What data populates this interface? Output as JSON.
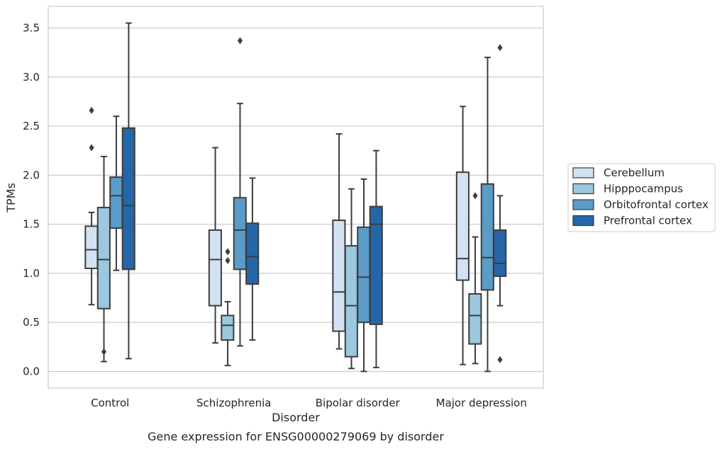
{
  "chart_data": {
    "type": "box",
    "title": "Gene expression for ENSG00000279069 by disorder",
    "xlabel": "Disorder",
    "ylabel": "TPMs",
    "ylim": [
      -0.17,
      3.72
    ],
    "yticks": [
      "0.0",
      "0.5",
      "1.0",
      "1.5",
      "2.0",
      "2.5",
      "3.0",
      "3.5"
    ],
    "categories": [
      "Control",
      "Schizophrenia",
      "Bipolar disorder",
      "Major depression"
    ],
    "grid": "horizontal",
    "legend_position": "right",
    "series": [
      {
        "name": "Cerebellum",
        "color": "#d2e2f2",
        "boxes": [
          {
            "whisker_low": 0.68,
            "q1": 1.05,
            "median": 1.24,
            "q3": 1.48,
            "whisker_high": 1.62,
            "outliers": [
              2.66,
              2.28
            ]
          },
          {
            "whisker_low": 0.29,
            "q1": 0.67,
            "median": 1.14,
            "q3": 1.44,
            "whisker_high": 2.28,
            "outliers": []
          },
          {
            "whisker_low": 0.23,
            "q1": 0.41,
            "median": 0.81,
            "q3": 1.54,
            "whisker_high": 2.42,
            "outliers": []
          },
          {
            "whisker_low": 0.07,
            "q1": 0.93,
            "median": 1.15,
            "q3": 2.03,
            "whisker_high": 2.7,
            "outliers": []
          }
        ]
      },
      {
        "name": "Hipppocampus",
        "color": "#9bc7df",
        "boxes": [
          {
            "whisker_low": 0.1,
            "q1": 0.64,
            "median": 1.14,
            "q3": 1.67,
            "whisker_high": 2.19,
            "outliers": [
              0.2
            ]
          },
          {
            "whisker_low": 0.06,
            "q1": 0.32,
            "median": 0.47,
            "q3": 0.57,
            "whisker_high": 0.71,
            "outliers": [
              1.22,
              1.13
            ]
          },
          {
            "whisker_low": 0.03,
            "q1": 0.15,
            "median": 0.67,
            "q3": 1.28,
            "whisker_high": 1.86,
            "outliers": []
          },
          {
            "whisker_low": 0.08,
            "q1": 0.28,
            "median": 0.57,
            "q3": 0.79,
            "whisker_high": 1.37,
            "outliers": [
              1.79
            ]
          }
        ]
      },
      {
        "name": "Orbitofrontal cortex",
        "color": "#5a9bc8",
        "boxes": [
          {
            "whisker_low": 1.03,
            "q1": 1.46,
            "median": 1.79,
            "q3": 1.98,
            "whisker_high": 2.6,
            "outliers": []
          },
          {
            "whisker_low": 0.26,
            "q1": 1.04,
            "median": 1.44,
            "q3": 1.77,
            "whisker_high": 2.73,
            "outliers": [
              3.37
            ]
          },
          {
            "whisker_low": 0.0,
            "q1": 0.5,
            "median": 0.96,
            "q3": 1.47,
            "whisker_high": 1.96,
            "outliers": []
          },
          {
            "whisker_low": 0.0,
            "q1": 0.83,
            "median": 1.16,
            "q3": 1.91,
            "whisker_high": 3.2,
            "outliers": []
          }
        ]
      },
      {
        "name": "Prefrontal cortex",
        "color": "#2566a8",
        "boxes": [
          {
            "whisker_low": 0.13,
            "q1": 1.04,
            "median": 1.69,
            "q3": 2.48,
            "whisker_high": 3.55,
            "outliers": []
          },
          {
            "whisker_low": 0.32,
            "q1": 0.89,
            "median": 1.17,
            "q3": 1.51,
            "whisker_high": 1.97,
            "outliers": []
          },
          {
            "whisker_low": 0.04,
            "q1": 0.48,
            "median": 1.5,
            "q3": 1.68,
            "whisker_high": 2.25,
            "outliers": []
          },
          {
            "whisker_low": 0.67,
            "q1": 0.97,
            "median": 1.1,
            "q3": 1.44,
            "whisker_high": 1.79,
            "outliers": [
              0.12,
              3.3
            ]
          }
        ]
      }
    ]
  }
}
